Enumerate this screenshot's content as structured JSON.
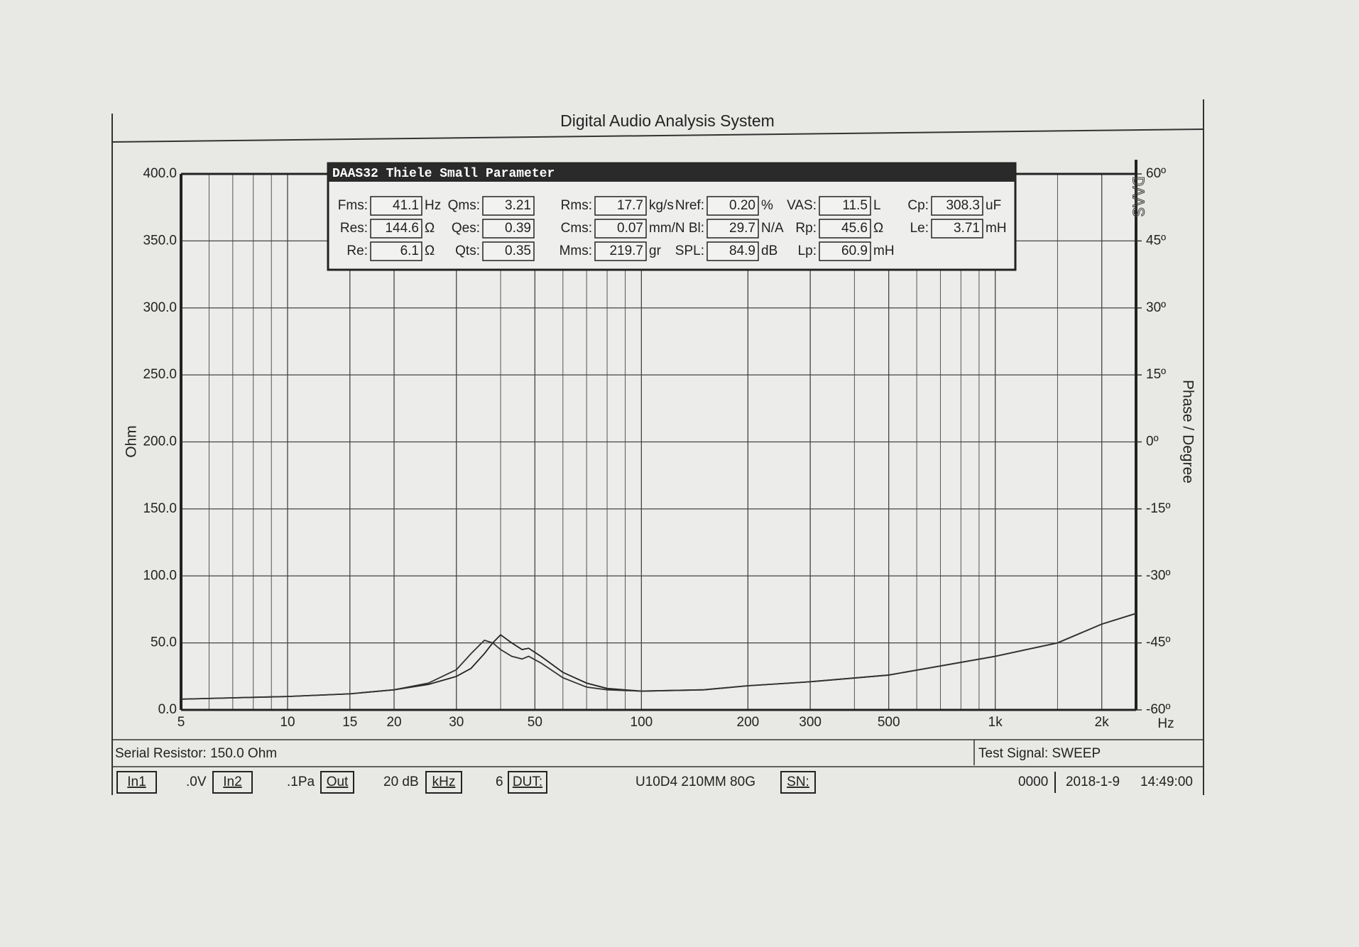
{
  "chart_data": {
    "type": "line",
    "title": "Digital Audio Analysis System",
    "y_label": "Ohm",
    "y2_label": "Phase / Degree",
    "x_unit": "Hz",
    "xscale": "log",
    "xlim": [
      5,
      2500
    ],
    "xticks": [
      5,
      10,
      15,
      20,
      30,
      50,
      100,
      200,
      300,
      500,
      {
        "value": 1000,
        "label": "1k"
      },
      {
        "value": 2000,
        "label": "2k"
      }
    ],
    "xminorticks": [
      6,
      7,
      8,
      9,
      40,
      60,
      70,
      80,
      90,
      400,
      600,
      700,
      800,
      900,
      1500
    ],
    "ylim": [
      0,
      400
    ],
    "yticks": [
      {
        "value": 0,
        "label": "0.0"
      },
      {
        "value": 50,
        "label": "50.0"
      },
      {
        "value": 100,
        "label": "100.0"
      },
      {
        "value": 150,
        "label": "150.0"
      },
      {
        "value": 200,
        "label": "200.0"
      },
      {
        "value": 250,
        "label": "250.0"
      },
      {
        "value": 300,
        "label": "300.0"
      },
      {
        "value": 350,
        "label": "350.0"
      },
      {
        "value": 400,
        "label": "400.0"
      }
    ],
    "y2lim": [
      -60,
      60
    ],
    "y2ticks": [
      {
        "value": -60,
        "label": "-60º"
      },
      {
        "value": -45,
        "label": "-45º"
      },
      {
        "value": -30,
        "label": "-30º"
      },
      {
        "value": -15,
        "label": "-15º"
      },
      {
        "value": 0,
        "label": "0º"
      },
      {
        "value": 15,
        "label": "15º"
      },
      {
        "value": 30,
        "label": "30º"
      },
      {
        "value": 45,
        "label": "45º"
      },
      {
        "value": 60,
        "label": "60º"
      }
    ],
    "grid": true,
    "x": [
      5,
      7,
      10,
      15,
      20,
      25,
      30,
      33,
      36,
      38,
      40,
      43,
      46,
      48,
      52,
      60,
      70,
      80,
      100,
      150,
      200,
      300,
      500,
      1000,
      1500,
      2000,
      2500
    ],
    "series": [
      {
        "color": "#222222",
        "values": [
          8,
          9,
          10,
          12,
          15,
          19,
          25,
          31,
          42,
          50,
          56,
          50,
          45,
          46,
          40,
          28,
          20,
          16,
          14,
          15,
          18,
          21,
          26,
          40,
          50,
          64,
          72
        ]
      },
      {
        "color": "#333333",
        "values": [
          8,
          9,
          10,
          12,
          15,
          20,
          30,
          42,
          52,
          50,
          45,
          40,
          38,
          40,
          35,
          24,
          17,
          15,
          14,
          15,
          18,
          21,
          26,
          40,
          50,
          64,
          72
        ]
      }
    ]
  },
  "panel": {
    "title": "DAAS32 Thiele Small Parameter",
    "logo": "DAAS",
    "rows": [
      [
        {
          "label": "Fms:",
          "value": 41.1,
          "unit": "Hz"
        },
        {
          "label": "Qms:",
          "value": 3.21
        },
        {
          "label": "Rms:",
          "value": 17.7,
          "unit": "kg/s"
        },
        {
          "label": "Nref:",
          "value": "0.20",
          "unit": "%"
        },
        {
          "label": "VAS:",
          "value": 11.5,
          "unit": "L"
        },
        {
          "label": "Cp:",
          "value": 308.3,
          "unit": "uF"
        }
      ],
      [
        {
          "label": "Res:",
          "value": 144.6,
          "unit": "Ω"
        },
        {
          "label": "Qes:",
          "value": 0.39
        },
        {
          "label": "Cms:",
          "value": 0.07,
          "unit": "mm/N"
        },
        {
          "label": "Bl:",
          "value": 29.7,
          "unit": "N/A"
        },
        {
          "label": "Rp:",
          "value": 45.6,
          "unit": "Ω"
        },
        {
          "label": "Le:",
          "value": 3.71,
          "unit": "mH"
        }
      ],
      [
        {
          "label": "Re:",
          "value": 6.1,
          "unit": "Ω"
        },
        {
          "label": "Qts:",
          "value": 0.35
        },
        {
          "label": "Mms:",
          "value": 219.7,
          "unit": "gr"
        },
        {
          "label": "SPL:",
          "value": 84.9,
          "unit": "dB"
        },
        {
          "label": "Lp:",
          "value": 60.9,
          "unit": "mH"
        }
      ]
    ]
  },
  "footer": {
    "serial": "Serial Resistor: 150.0 Ohm",
    "signal": "Test Signal: SWEEP",
    "items": [
      "In1",
      ".0V",
      "In2",
      ".1Pa",
      "Out",
      "20 dB",
      "kHz",
      "6",
      "DUT:",
      "U10D4 210MM 80G",
      "SN:",
      "0000",
      "2018-1-9",
      "14:49:00"
    ]
  }
}
